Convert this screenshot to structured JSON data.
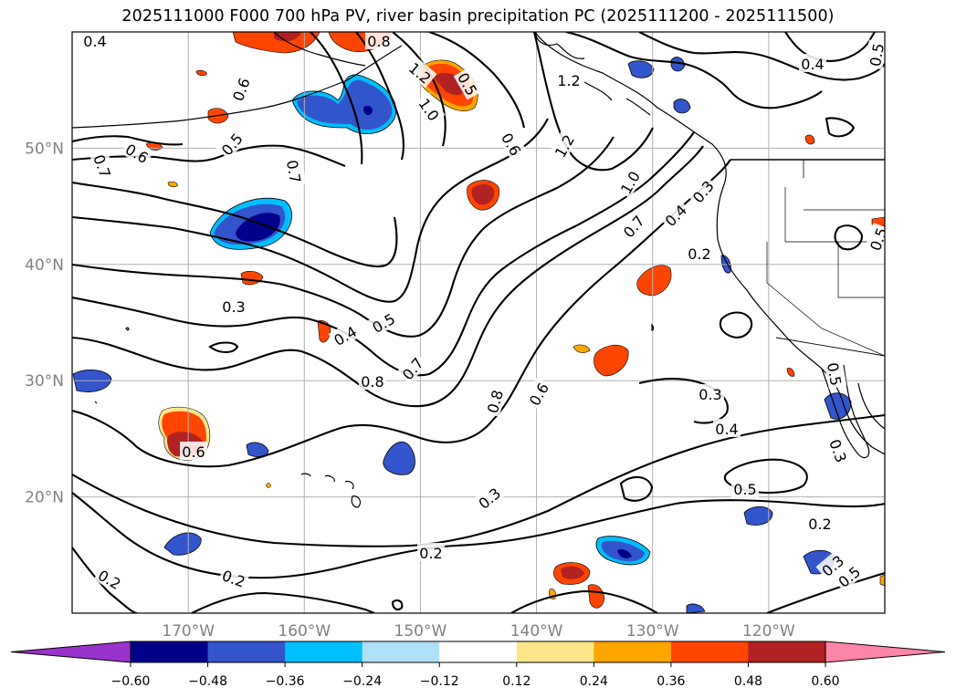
{
  "title": "2025111000 F000 700 hPa PV, river basin precipitation PC (2025111200 - 2025111500)",
  "map": {
    "lon_range": [
      -180,
      -110
    ],
    "lat_range": [
      10,
      60
    ],
    "lat_labels": [
      "50°N",
      "40°N",
      "30°N",
      "20°N"
    ],
    "lon_labels": [
      "170°W",
      "160°W",
      "150°W",
      "140°W",
      "130°W",
      "120°W"
    ],
    "gridlines": true,
    "contour_field": "700 hPa PV",
    "contour_labels": [
      "0.4",
      "0.6",
      "0.7",
      "0.5",
      "0.6",
      "0.7",
      "1.0",
      "1.2",
      "0.5",
      "1.2",
      "1.2",
      "0.6",
      "0.8",
      "0.4",
      "0.5",
      "0.3",
      "0.4",
      "0.5",
      "0.8",
      "0.7",
      "0.8",
      "0.6",
      "1.0",
      "0.7",
      "0.4",
      "0.3",
      "0.2",
      "0.3",
      "0.4",
      "0.5",
      "0.2",
      "0.3",
      "0.2",
      "0.2",
      "0.6",
      "0.2",
      "0.3",
      "0.5",
      "0.3",
      "0.5",
      "0.5"
    ]
  },
  "colorbar": {
    "ticks": [
      "−0.60",
      "−0.48",
      "−0.36",
      "−0.24",
      "−0.12",
      "0.12",
      "0.24",
      "0.36",
      "0.48",
      "0.60"
    ],
    "colors": [
      "#9933cc",
      "#00008b",
      "#3355cc",
      "#00bfff",
      "#b0e0f8",
      "#ffffff",
      "#ffe58a",
      "#ffa500",
      "#ff4500",
      "#b22222",
      "#ff85a8"
    ],
    "extend": "both"
  },
  "precip_blobs": [
    {
      "level": -0.48,
      "color": "#3355cc"
    },
    {
      "level": -0.6,
      "color": "#00008b"
    },
    {
      "level": 0.48,
      "color": "#b22222"
    },
    {
      "level": 0.36,
      "color": "#ff4500"
    }
  ]
}
